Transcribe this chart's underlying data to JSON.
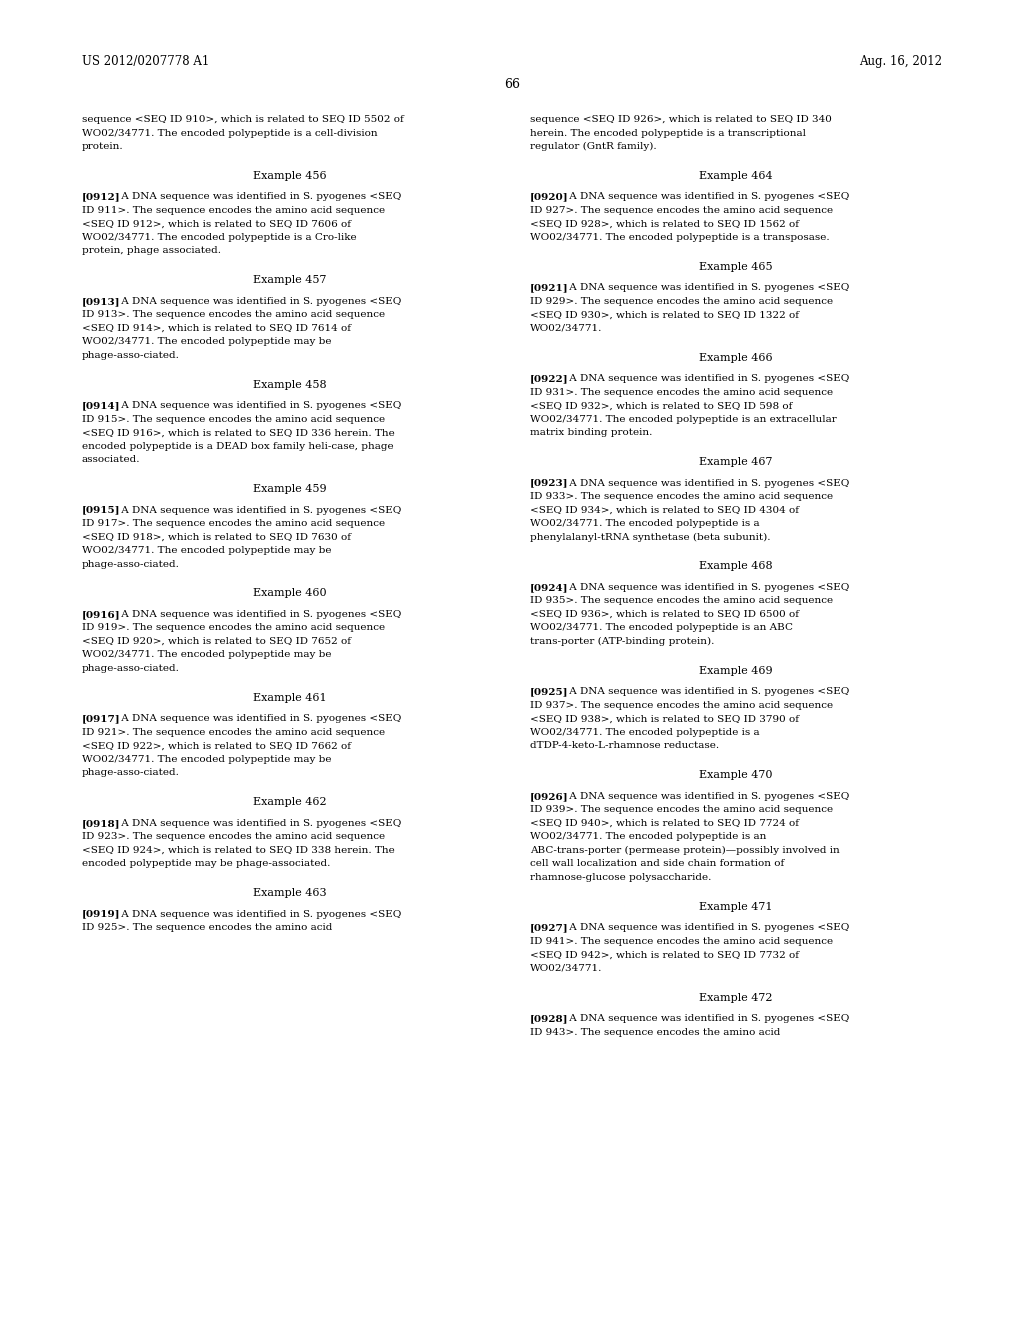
{
  "background_color": "#ffffff",
  "header_left": "US 2012/0207778 A1",
  "header_right": "Aug. 16, 2012",
  "page_number": "66",
  "top_intro_left": "sequence <SEQ ID 910>, which is related to SEQ ID 5502 of WO02/34771.  The encoded polypeptide is a cell-division protein.",
  "top_intro_right": "sequence <SEQ ID 926>, which is related to SEQ ID 340 herein. The encoded polypeptide is a transcriptional regulator (GntR family).",
  "examples": [
    {
      "col": "left",
      "example_num": "456",
      "para_num": "0912",
      "text": "A DNA sequence was identified in S. pyogenes <SEQ ID 911>. The sequence encodes the amino acid sequence <SEQ ID 912>, which is related to SEQ ID 7606 of WO02/34771. The encoded polypeptide is a Cro-like protein, phage associated."
    },
    {
      "col": "left",
      "example_num": "457",
      "para_num": "0913",
      "text": "A DNA sequence was identified in S. pyogenes <SEQ ID 913>. The sequence encodes the amino acid sequence <SEQ ID 914>, which is related to SEQ ID 7614 of WO02/34771. The encoded polypeptide may be phage-asso-ciated."
    },
    {
      "col": "left",
      "example_num": "458",
      "para_num": "0914",
      "text": "A DNA sequence was identified in S. pyogenes <SEQ ID 915>. The sequence encodes the amino acid sequence <SEQ ID 916>, which is related to SEQ ID 336 herein. The encoded polypeptide is a DEAD box family heli-case, phage associated."
    },
    {
      "col": "left",
      "example_num": "459",
      "para_num": "0915",
      "text": "A DNA sequence was identified in S. pyogenes <SEQ ID 917>. The sequence encodes the amino acid sequence <SEQ ID 918>, which is related to SEQ ID 7630 of WO02/34771. The encoded polypeptide may be phage-asso-ciated."
    },
    {
      "col": "left",
      "example_num": "460",
      "para_num": "0916",
      "text": "A DNA sequence was identified in S. pyogenes <SEQ ID 919>. The sequence encodes the amino acid sequence <SEQ ID 920>, which is related to SEQ ID 7652 of WO02/34771. The encoded polypeptide may be phage-asso-ciated."
    },
    {
      "col": "left",
      "example_num": "461",
      "para_num": "0917",
      "text": "A DNA sequence was identified in S. pyogenes <SEQ ID 921>. The sequence encodes the amino acid sequence <SEQ ID 922>, which is related to SEQ ID 7662 of WO02/34771. The encoded polypeptide may be phage-asso-ciated."
    },
    {
      "col": "left",
      "example_num": "462",
      "para_num": "0918",
      "text": "A DNA sequence was identified in S. pyogenes <SEQ ID 923>. The sequence encodes the amino acid sequence <SEQ ID 924>, which is related to SEQ ID 338 herein. The encoded polypeptide may be phage-associated."
    },
    {
      "col": "left",
      "example_num": "463",
      "para_num": "0919",
      "text": "A DNA sequence was identified in S. pyogenes <SEQ ID 925>. The sequence encodes the amino acid"
    },
    {
      "col": "right",
      "example_num": "464",
      "para_num": "0920",
      "text": "A DNA sequence was identified in S. pyogenes <SEQ ID 927>. The sequence encodes the amino acid sequence <SEQ ID 928>, which is related to SEQ ID 1562 of WO02/34771. The encoded polypeptide is a transposase."
    },
    {
      "col": "right",
      "example_num": "465",
      "para_num": "0921",
      "text": "A DNA sequence was identified in S. pyogenes <SEQ ID 929>. The sequence encodes the amino acid sequence <SEQ ID 930>, which is related to SEQ ID 1322 of WO02/34771."
    },
    {
      "col": "right",
      "example_num": "466",
      "para_num": "0922",
      "text": "A DNA sequence was identified in S. pyogenes <SEQ ID 931>. The sequence encodes the amino acid sequence <SEQ ID 932>, which is related to SEQ ID 598 of WO02/34771. The encoded polypeptide is an extracellular matrix binding protein."
    },
    {
      "col": "right",
      "example_num": "467",
      "para_num": "0923",
      "text": "A DNA sequence was identified in S. pyogenes <SEQ ID 933>. The sequence encodes the amino acid sequence <SEQ ID 934>, which is related to SEQ ID 4304 of WO02/34771. The encoded polypeptide is a phenylalanyl-tRNA synthetase (beta subunit)."
    },
    {
      "col": "right",
      "example_num": "468",
      "para_num": "0924",
      "text": "A DNA sequence was identified in S. pyogenes <SEQ ID 935>. The sequence encodes the amino acid sequence <SEQ ID 936>, which is related to SEQ ID 6500 of WO02/34771. The encoded polypeptide is an ABC trans-porter (ATP-binding protein)."
    },
    {
      "col": "right",
      "example_num": "469",
      "para_num": "0925",
      "text": "A DNA sequence was identified in S. pyogenes <SEQ ID 937>. The sequence encodes the amino acid sequence <SEQ ID 938>, which is related to SEQ ID 3790 of WO02/34771. The encoded polypeptide is a dTDP-4-keto-L-rhamnose reductase."
    },
    {
      "col": "right",
      "example_num": "470",
      "para_num": "0926",
      "text": "A DNA sequence was identified in S. pyogenes <SEQ ID 939>. The sequence encodes the amino acid sequence <SEQ ID 940>, which is related to SEQ ID 7724 of WO02/34771. The encoded polypeptide is an ABC-trans-porter (permease protein)—possibly involved in cell wall localization and side chain formation of rhamnose-glucose polysaccharide."
    },
    {
      "col": "right",
      "example_num": "471",
      "para_num": "0927",
      "text": "A DNA sequence was identified in S. pyogenes <SEQ ID 941>. The sequence encodes the amino acid sequence <SEQ ID 942>, which is related to SEQ ID 7732 of WO02/34771."
    },
    {
      "col": "right",
      "example_num": "472",
      "para_num": "0928",
      "text": "A DNA sequence was identified in S. pyogenes <SEQ ID 943>. The sequence encodes the amino acid"
    }
  ]
}
